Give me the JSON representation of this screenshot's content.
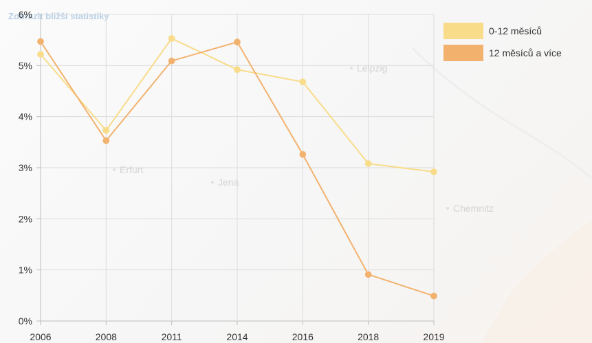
{
  "chart_data": {
    "type": "line",
    "categories": [
      "2006",
      "2008",
      "2011",
      "2014",
      "2016",
      "2018",
      "2019"
    ],
    "series": [
      {
        "name": "0-12 měsíců",
        "color": "#f8dc8a",
        "values": [
          5.22,
          3.73,
          5.53,
          4.92,
          4.68,
          3.08,
          2.92
        ]
      },
      {
        "name": "12 měsíců a více",
        "color": "#f2b26e",
        "values": [
          5.47,
          3.53,
          5.09,
          5.46,
          3.26,
          0.91,
          0.49
        ]
      }
    ],
    "y_ticks": [
      "0%",
      "1%",
      "2%",
      "3%",
      "4%",
      "5%",
      "6%"
    ],
    "ylim": [
      0,
      6
    ],
    "grid": true,
    "legend_position": "top-right",
    "subtitle": "Zobrazit bližší statistiky"
  },
  "background_map": {
    "labels": [
      "Leipzig",
      "Erfurt",
      "Jena",
      "Chemnitz"
    ]
  }
}
